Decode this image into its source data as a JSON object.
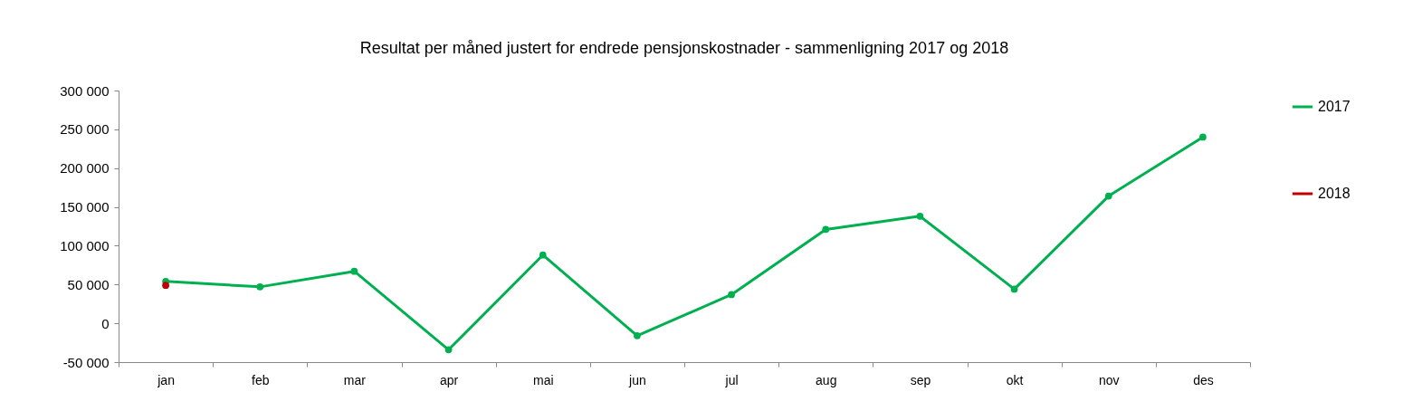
{
  "chart_data": {
    "type": "line",
    "title": "Resultat per måned justert for endrede pensjonskostnader - sammenligning 2017 og 2018",
    "categories": [
      "jan",
      "feb",
      "mar",
      "apr",
      "mai",
      "jun",
      "jul",
      "aug",
      "sep",
      "okt",
      "nov",
      "des"
    ],
    "series": [
      {
        "name": "2017",
        "color": "#00b050",
        "values": [
          54000,
          47000,
          67000,
          -34000,
          88000,
          -16000,
          37000,
          121000,
          138000,
          44000,
          164000,
          240000
        ]
      },
      {
        "name": "2018",
        "color": "#c00000",
        "values": [
          49000,
          null,
          null,
          null,
          null,
          null,
          null,
          null,
          null,
          null,
          null,
          null
        ]
      }
    ],
    "ylim": [
      -50000,
      300000
    ],
    "yticks": [
      {
        "value": -50000,
        "label": "-50 000"
      },
      {
        "value": 0,
        "label": "0"
      },
      {
        "value": 50000,
        "label": "50 000"
      },
      {
        "value": 100000,
        "label": "100 000"
      },
      {
        "value": 150000,
        "label": "150 000"
      },
      {
        "value": 200000,
        "label": "200 000"
      },
      {
        "value": 250000,
        "label": "250 000"
      },
      {
        "value": 300000,
        "label": "300 000"
      }
    ],
    "grid": false,
    "legend": "right",
    "marker": "circle",
    "line_style": "solid"
  }
}
